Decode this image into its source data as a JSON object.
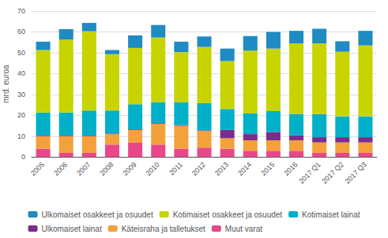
{
  "chart_data": {
    "type": "bar",
    "stacked": true,
    "categories": [
      "2005",
      "2006",
      "2007",
      "2008",
      "2009",
      "2010",
      "2011",
      "2012",
      "2013",
      "2014",
      "2015",
      "2016",
      "2017 Q1",
      "2017 Q2",
      "2017 Q3"
    ],
    "series": [
      {
        "name": "Muut varat",
        "color": "#e8488a",
        "values": [
          4.0,
          2.0,
          2.0,
          6.0,
          7.0,
          6.0,
          4.0,
          4.5,
          4.0,
          3.0,
          3.0,
          3.0,
          2.0,
          2.0,
          2.0
        ]
      },
      {
        "name": "Käteisraha ja talletukset",
        "color": "#f4a13b",
        "values": [
          6.0,
          8.0,
          8.0,
          5.0,
          6.0,
          10.0,
          11.0,
          8.0,
          5.0,
          5.0,
          5.0,
          5.0,
          5.0,
          5.0,
          5.0
        ]
      },
      {
        "name": "Ulkomaiset lainat",
        "color": "#7b2d8b",
        "values": [
          0.3,
          0.3,
          0.3,
          0.3,
          0.3,
          0.3,
          0.3,
          0.3,
          4.0,
          3.0,
          4.0,
          2.5,
          2.5,
          2.5,
          2.5
        ]
      },
      {
        "name": "Kotimaiset lainat",
        "color": "#00b0c8",
        "values": [
          11.0,
          11.0,
          12.0,
          11.0,
          12.0,
          10.0,
          11.0,
          13.0,
          10.0,
          10.0,
          10.0,
          10.0,
          11.0,
          10.0,
          10.0
        ]
      },
      {
        "name": "Kotimaiset osakkeet ja osuudet",
        "color": "#c8d400",
        "values": [
          30.0,
          35.0,
          38.0,
          27.0,
          27.0,
          31.0,
          24.0,
          27.0,
          23.0,
          30.0,
          30.0,
          34.0,
          34.0,
          31.0,
          34.0
        ]
      },
      {
        "name": "Ulkomaiset osakkeet ja osuudet",
        "color": "#1e8bc3",
        "values": [
          4.0,
          5.0,
          4.0,
          2.0,
          6.0,
          6.0,
          5.0,
          5.0,
          6.0,
          7.0,
          8.0,
          6.0,
          7.0,
          5.0,
          7.0
        ]
      }
    ],
    "ylabel": "mrd. euroa",
    "ylim": [
      0,
      70
    ],
    "yticks": [
      0,
      10,
      20,
      30,
      40,
      50,
      60,
      70
    ],
    "grid": true,
    "legend": "bottom"
  }
}
